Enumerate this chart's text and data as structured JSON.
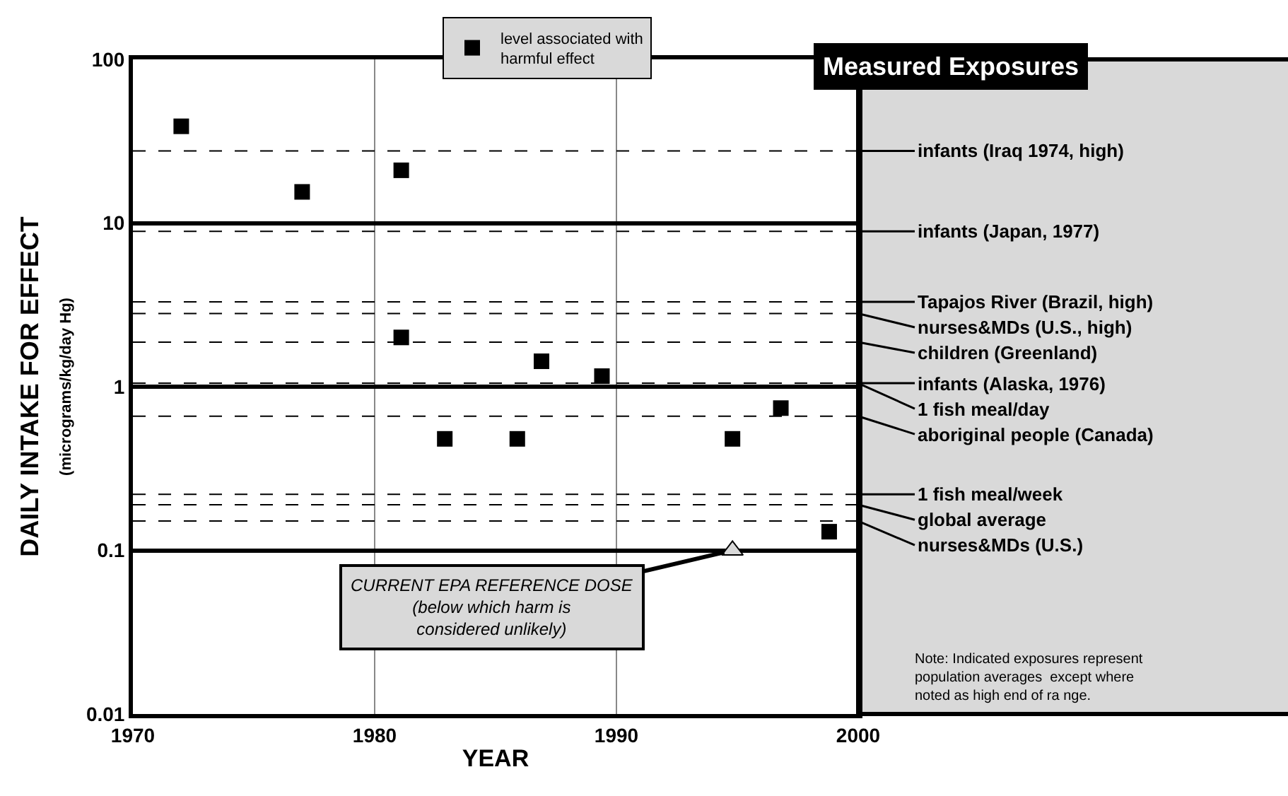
{
  "chart_data": {
    "type": "scatter",
    "title": "Measured Exposures",
    "xlabel": "YEAR",
    "ylabel": "DAILY INTAKE FOR EFFECT\n(micrograms/kg/day Hg)",
    "xlim": [
      1970,
      2000
    ],
    "xticks": [
      1970,
      1980,
      1990,
      2000
    ],
    "ylim": [
      0.01,
      100
    ],
    "yticks": [
      0.01,
      0.1,
      1,
      10,
      100
    ],
    "log": "y",
    "grid": true,
    "legend": "top",
    "series": [
      {
        "name": "level associated with harmful effect",
        "color": "#000000",
        "marker": "square",
        "x": [
          1972,
          1977,
          1981.1,
          1981.1,
          1982.9,
          1985.9,
          1986.9,
          1989.4,
          1994.8,
          1996.8,
          1998.8
        ],
        "values": [
          39,
          15.5,
          21,
          2,
          0.48,
          0.48,
          1.43,
          1.16,
          0.48,
          0.74,
          0.13
        ]
      },
      {
        "color": "#d9d9d9",
        "marker": "triangle",
        "x": [
          1994.8
        ],
        "values": [
          0.1
        ]
      }
    ],
    "ref_lines": [
      {
        "axis": "y",
        "value": 27.6,
        "label": "infants (Iraq 1974, high)",
        "line_style": "dashed"
      },
      {
        "axis": "y",
        "value": 8.9,
        "label": "infants (Japan, 1977)",
        "line_style": "dashed"
      },
      {
        "axis": "y",
        "value": 3.3,
        "label": "Tapajos River (Brazil, high)",
        "line_style": "dashed"
      },
      {
        "axis": "y",
        "value": 2.8,
        "label": "nurses&MDs (U.S., high)",
        "line_style": "dashed"
      },
      {
        "axis": "y",
        "value": 1.87,
        "label": "children (Greenland)",
        "line_style": "dashed"
      },
      {
        "axis": "y",
        "value": 1.05,
        "label": "infants (Alaska, 1976)",
        "line_style": "dashed"
      },
      {
        "axis": "y",
        "value": 1.05,
        "label": "1 fish meal/day",
        "line_style": "dashed"
      },
      {
        "axis": "y",
        "value": 0.66,
        "label": "aboriginal people (Canada)",
        "line_style": "dashed"
      },
      {
        "axis": "y",
        "value": 0.22,
        "label": "1 fish meal/week",
        "line_style": "dashed"
      },
      {
        "axis": "y",
        "value": 0.19,
        "label": "global average",
        "line_style": "dashed"
      },
      {
        "axis": "y",
        "value": 0.151,
        "label": "nurses&MDs (U.S.)",
        "line_style": "dashed"
      }
    ],
    "annotations": [
      {
        "text": "CURRENT EPA REFERENCE DOSE\n(below which harm is\nconsidered unlikely)",
        "x": 1994.8,
        "y": 0.1
      },
      "Note: Indicated exposures represent\npopulation averages  except where\nnoted as high end of ra nge."
    ]
  }
}
